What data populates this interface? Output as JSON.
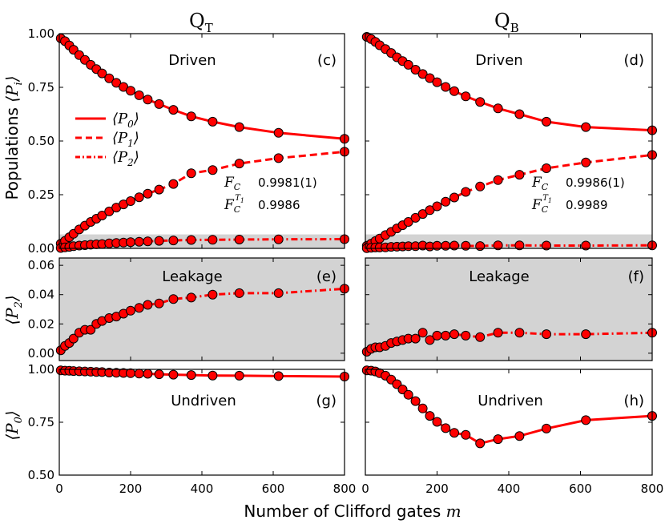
{
  "figure": {
    "column_titles": [
      "Q",
      "Q"
    ],
    "column_title_subscripts": [
      "T",
      "B"
    ],
    "xlabel_text": "Number of Clifford gates ",
    "xlabel_symbol": "m",
    "ylabels": {
      "populations_word": "Populations ",
      "populations_symbol": "⟨P",
      "populations_sub": "i",
      "populations_close": "⟩",
      "p2_symbol": "⟨P",
      "p2_sub": "2",
      "p2_close": "⟩",
      "p0_symbol": "⟨P",
      "p0_sub": "0",
      "p0_close": "⟩"
    },
    "colors": {
      "series": "#ff0000",
      "marker_edge": "#000000",
      "leakage_fill": "#d3d3d3",
      "background": "#ffffff"
    }
  },
  "chart_data": [
    {
      "id": "c",
      "type": "line",
      "panel_label": "(c)",
      "annotation": "Driven",
      "xlim": [
        0,
        800
      ],
      "ylim": [
        0,
        1
      ],
      "xticks": [
        0,
        200,
        400,
        600,
        800
      ],
      "xtick_labels": [
        "",
        "",
        "",
        "",
        ""
      ],
      "yticks": [
        0,
        0.25,
        0.5,
        0.75,
        1.0
      ],
      "ytick_labels": [
        "0.00",
        "0.25",
        "0.50",
        "0.75",
        "1.00"
      ],
      "shaded_band": [
        0,
        0.065
      ],
      "legend": {
        "position": "middle-left",
        "entries": [
          {
            "symbol": "⟨P",
            "sub": "0",
            "close": "⟩",
            "style": "solid"
          },
          {
            "symbol": "⟨P",
            "sub": "1",
            "close": "⟩",
            "style": "dashed"
          },
          {
            "symbol": "⟨P",
            "sub": "2",
            "close": "⟩",
            "style": "dashdot"
          }
        ]
      },
      "fidelity": {
        "fc_symbol": "F",
        "fc_sub": "C",
        "fc_value": "0.9981(1)",
        "fct1_sup": "T",
        "fct1_supsub": "1",
        "fct1_value": "0.9986"
      },
      "x": [
        4,
        16,
        28,
        40,
        56,
        72,
        88,
        104,
        120,
        140,
        160,
        180,
        200,
        224,
        248,
        280,
        320,
        370,
        430,
        505,
        615,
        800
      ],
      "series": [
        {
          "name": "P0",
          "style": "solid",
          "values": [
            0.978,
            0.965,
            0.945,
            0.925,
            0.9,
            0.878,
            0.855,
            0.835,
            0.815,
            0.792,
            0.771,
            0.752,
            0.734,
            0.713,
            0.693,
            0.672,
            0.645,
            0.615,
            0.59,
            0.565,
            0.538,
            0.51
          ]
        },
        {
          "name": "P1",
          "style": "dashed",
          "values": [
            0.022,
            0.035,
            0.052,
            0.068,
            0.088,
            0.106,
            0.123,
            0.138,
            0.153,
            0.172,
            0.19,
            0.205,
            0.22,
            0.238,
            0.255,
            0.274,
            0.3,
            0.35,
            0.365,
            0.395,
            0.42,
            0.45
          ]
        },
        {
          "name": "P2",
          "style": "dashdot",
          "values": [
            0.002,
            0.005,
            0.007,
            0.01,
            0.013,
            0.015,
            0.017,
            0.019,
            0.02,
            0.023,
            0.025,
            0.027,
            0.029,
            0.031,
            0.033,
            0.035,
            0.037,
            0.039,
            0.04,
            0.041,
            0.042,
            0.043
          ]
        }
      ]
    },
    {
      "id": "d",
      "type": "line",
      "panel_label": "(d)",
      "annotation": "Driven",
      "xlim": [
        0,
        800
      ],
      "ylim": [
        0,
        1
      ],
      "xticks": [
        0,
        200,
        400,
        600,
        800
      ],
      "xtick_labels": [
        "",
        "",
        "",
        "",
        ""
      ],
      "yticks": [
        0,
        0.25,
        0.5,
        0.75,
        1.0
      ],
      "ytick_labels": [
        "",
        "",
        "",
        "",
        ""
      ],
      "shaded_band": [
        0,
        0.065
      ],
      "fidelity": {
        "fc_symbol": "F",
        "fc_sub": "C",
        "fc_value": "0.9986(1)",
        "fct1_sup": "T",
        "fct1_supsub": "1",
        "fct1_value": "0.9989"
      },
      "x": [
        4,
        16,
        28,
        40,
        56,
        72,
        88,
        104,
        120,
        140,
        160,
        180,
        200,
        224,
        248,
        280,
        320,
        370,
        430,
        505,
        615,
        800
      ],
      "series": [
        {
          "name": "P0",
          "style": "solid",
          "values": [
            0.985,
            0.975,
            0.962,
            0.946,
            0.928,
            0.91,
            0.89,
            0.872,
            0.855,
            0.832,
            0.812,
            0.793,
            0.774,
            0.752,
            0.732,
            0.708,
            0.682,
            0.652,
            0.625,
            0.59,
            0.565,
            0.55
          ]
        },
        {
          "name": "P1",
          "style": "dashed",
          "values": [
            0.012,
            0.022,
            0.034,
            0.046,
            0.062,
            0.077,
            0.093,
            0.108,
            0.123,
            0.142,
            0.16,
            0.178,
            0.196,
            0.217,
            0.237,
            0.263,
            0.288,
            0.318,
            0.343,
            0.373,
            0.4,
            0.435
          ]
        },
        {
          "name": "P2",
          "style": "dashdot",
          "values": [
            0.001,
            0.003,
            0.004,
            0.004,
            0.005,
            0.007,
            0.008,
            0.009,
            0.01,
            0.01,
            0.013,
            0.009,
            0.012,
            0.012,
            0.013,
            0.012,
            0.011,
            0.014,
            0.014,
            0.013,
            0.013,
            0.014
          ]
        }
      ]
    },
    {
      "id": "e",
      "type": "line",
      "panel_label": "(e)",
      "annotation": "Leakage",
      "xlim": [
        0,
        800
      ],
      "ylim": [
        -0.005,
        0.065
      ],
      "xticks": [
        0,
        200,
        400,
        600,
        800
      ],
      "xtick_labels": [
        "",
        "",
        "",
        "",
        ""
      ],
      "yticks": [
        0,
        0.02,
        0.04,
        0.06
      ],
      "ytick_labels": [
        "0.00",
        "0.02",
        "0.04",
        "0.06"
      ],
      "full_shade": true,
      "x": [
        4,
        16,
        28,
        40,
        56,
        72,
        88,
        104,
        120,
        140,
        160,
        180,
        200,
        224,
        248,
        280,
        320,
        370,
        430,
        505,
        615,
        800
      ],
      "series": [
        {
          "name": "P2",
          "style": "dashdot",
          "values": [
            0.002,
            0.005,
            0.007,
            0.01,
            0.014,
            0.016,
            0.016,
            0.02,
            0.022,
            0.024,
            0.025,
            0.027,
            0.029,
            0.031,
            0.033,
            0.034,
            0.037,
            0.038,
            0.04,
            0.041,
            0.041,
            0.044
          ]
        }
      ]
    },
    {
      "id": "f",
      "type": "line",
      "panel_label": "(f)",
      "annotation": "Leakage",
      "xlim": [
        0,
        800
      ],
      "ylim": [
        -0.005,
        0.065
      ],
      "xticks": [
        0,
        200,
        400,
        600,
        800
      ],
      "xtick_labels": [
        "",
        "",
        "",
        "",
        ""
      ],
      "yticks": [
        0,
        0.02,
        0.04,
        0.06
      ],
      "ytick_labels": [
        "",
        "",
        "",
        ""
      ],
      "full_shade": true,
      "x": [
        4,
        16,
        28,
        40,
        56,
        72,
        88,
        104,
        120,
        140,
        160,
        180,
        200,
        224,
        248,
        280,
        320,
        370,
        430,
        505,
        615,
        800
      ],
      "series": [
        {
          "name": "P2",
          "style": "dashdot",
          "values": [
            0.001,
            0.003,
            0.004,
            0.004,
            0.005,
            0.007,
            0.008,
            0.009,
            0.01,
            0.01,
            0.014,
            0.009,
            0.012,
            0.012,
            0.013,
            0.012,
            0.011,
            0.014,
            0.014,
            0.013,
            0.013,
            0.014
          ]
        }
      ]
    },
    {
      "id": "g",
      "type": "line",
      "panel_label": "(g)",
      "annotation": "Undriven",
      "xlim": [
        0,
        800
      ],
      "ylim": [
        0.5,
        1.0
      ],
      "xticks": [
        0,
        200,
        400,
        600,
        800
      ],
      "xtick_labels": [
        "0",
        "200",
        "400",
        "600",
        "800"
      ],
      "yticks": [
        0.5,
        0.75,
        1.0
      ],
      "ytick_labels": [
        "0.50",
        "0.75",
        "1.00"
      ],
      "x": [
        4,
        16,
        28,
        40,
        56,
        72,
        88,
        104,
        120,
        140,
        160,
        180,
        200,
        224,
        248,
        280,
        320,
        370,
        430,
        505,
        615,
        800
      ],
      "series": [
        {
          "name": "P0",
          "style": "solid",
          "values": [
            0.995,
            0.994,
            0.993,
            0.992,
            0.991,
            0.99,
            0.989,
            0.988,
            0.987,
            0.985,
            0.984,
            0.983,
            0.982,
            0.98,
            0.979,
            0.977,
            0.975,
            0.973,
            0.971,
            0.97,
            0.968,
            0.966
          ]
        }
      ]
    },
    {
      "id": "h",
      "type": "line",
      "panel_label": "(h)",
      "annotation": "Undriven",
      "xlim": [
        0,
        800
      ],
      "ylim": [
        0.5,
        1.0
      ],
      "xticks": [
        0,
        200,
        400,
        600,
        800
      ],
      "xtick_labels": [
        "0",
        "200",
        "400",
        "600",
        "800"
      ],
      "yticks": [
        0.5,
        0.75,
        1.0
      ],
      "ytick_labels": [
        "",
        "",
        ""
      ],
      "x": [
        4,
        16,
        28,
        40,
        56,
        72,
        88,
        104,
        120,
        140,
        160,
        180,
        200,
        224,
        248,
        280,
        320,
        370,
        430,
        505,
        615,
        800
      ],
      "series": [
        {
          "name": "P0",
          "style": "solid",
          "values": [
            0.995,
            0.994,
            0.99,
            0.982,
            0.97,
            0.952,
            0.93,
            0.905,
            0.88,
            0.85,
            0.815,
            0.78,
            0.752,
            0.722,
            0.7,
            0.69,
            0.65,
            0.67,
            0.685,
            0.72,
            0.76,
            0.78
          ]
        }
      ]
    }
  ]
}
